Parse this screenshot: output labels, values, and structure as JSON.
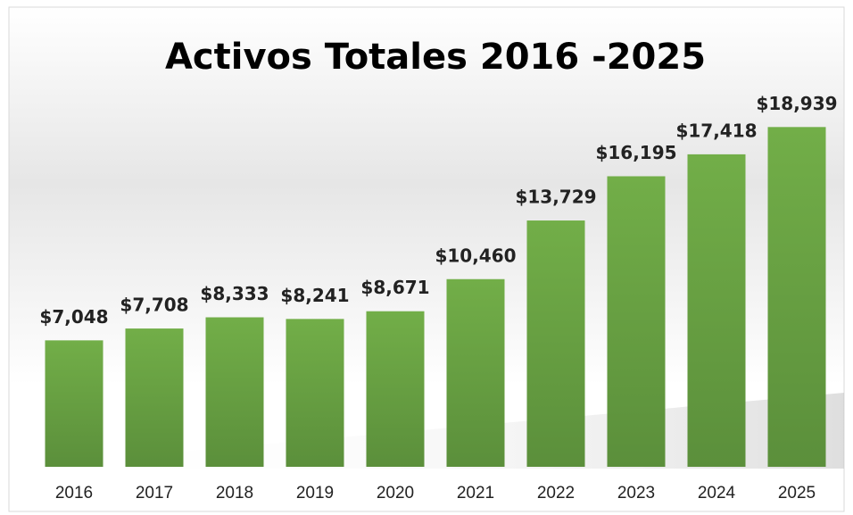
{
  "chart_data": {
    "type": "bar",
    "title": "Activos Totales 2016 -2025",
    "categories": [
      "2016",
      "2017",
      "2018",
      "2019",
      "2020",
      "2021",
      "2022",
      "2023",
      "2024",
      "2025"
    ],
    "values": [
      7048,
      7708,
      8333,
      8241,
      8671,
      10460,
      13729,
      16195,
      17418,
      18939
    ],
    "value_labels": [
      "$7,048",
      "$7,708",
      "$8,333",
      "$8,241",
      "$8,671",
      "$10,460",
      "$13,729",
      "$16,195",
      "$17,418",
      "$18,939"
    ],
    "color": "#70ad47",
    "ylim": [
      0,
      20000
    ]
  }
}
